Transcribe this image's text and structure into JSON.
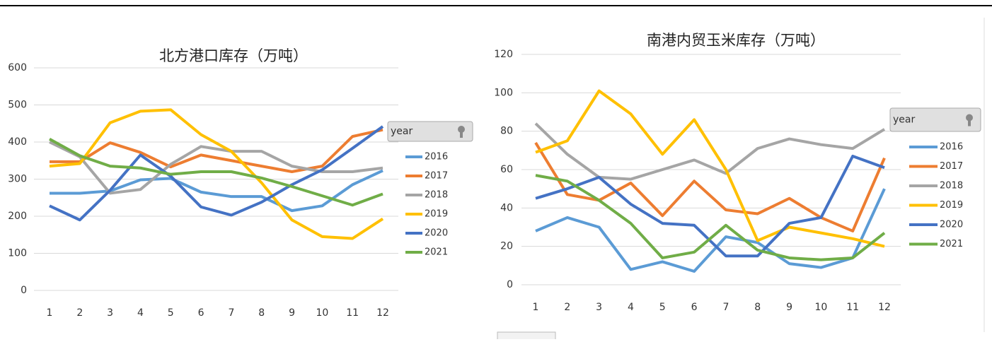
{
  "chart_data": [
    {
      "type": "line",
      "title": "北方港口库存（万吨）",
      "legend_title": "year",
      "categories": [
        "1",
        "2",
        "3",
        "4",
        "5",
        "6",
        "7",
        "8",
        "9",
        "10",
        "11",
        "12"
      ],
      "ylim": [
        0,
        600
      ],
      "yticks": [
        0,
        100,
        200,
        300,
        400,
        500,
        600
      ],
      "grid": true,
      "legend": "right",
      "series": [
        {
          "name": "2016",
          "color": "#5b9bd5",
          "values": [
            262,
            262,
            268,
            298,
            302,
            265,
            253,
            253,
            215,
            228,
            285,
            323
          ]
        },
        {
          "name": "2017",
          "color": "#ed7d31",
          "values": [
            347,
            347,
            398,
            372,
            333,
            365,
            350,
            335,
            320,
            335,
            415,
            433
          ]
        },
        {
          "name": "2018",
          "color": "#a5a5a5",
          "values": [
            400,
            360,
            262,
            272,
            340,
            388,
            375,
            375,
            335,
            320,
            320,
            330
          ]
        },
        {
          "name": "2019",
          "color": "#ffc000",
          "values": [
            335,
            342,
            452,
            483,
            487,
            420,
            375,
            290,
            190,
            145,
            140,
            193
          ]
        },
        {
          "name": "2020",
          "color": "#4472c4",
          "values": [
            228,
            190,
            270,
            365,
            308,
            225,
            203,
            238,
            285,
            325,
            383,
            442
          ]
        },
        {
          "name": "2021",
          "color": "#70ad47",
          "values": [
            408,
            363,
            335,
            330,
            313,
            320,
            320,
            303,
            280,
            255,
            230,
            260
          ]
        }
      ]
    },
    {
      "type": "line",
      "title": "南港内贸玉米库存（万吨）",
      "legend_title": "year",
      "categories": [
        "1",
        "2",
        "3",
        "4",
        "5",
        "6",
        "7",
        "8",
        "9",
        "10",
        "11",
        "12"
      ],
      "ylim": [
        0,
        120
      ],
      "yticks": [
        0,
        20,
        40,
        60,
        80,
        100,
        120
      ],
      "grid": true,
      "legend": "right",
      "series": [
        {
          "name": "2016",
          "color": "#5b9bd5",
          "values": [
            28,
            35,
            30,
            8,
            12,
            7,
            25,
            22,
            11,
            9,
            14,
            50
          ]
        },
        {
          "name": "2017",
          "color": "#ed7d31",
          "values": [
            74,
            47,
            44,
            53,
            36,
            54,
            39,
            37,
            45,
            35,
            28,
            66
          ]
        },
        {
          "name": "2018",
          "color": "#a5a5a5",
          "values": [
            84,
            68,
            56,
            55,
            60,
            65,
            58,
            71,
            76,
            73,
            71,
            81
          ]
        },
        {
          "name": "2019",
          "color": "#ffc000",
          "values": [
            69,
            75,
            101,
            89,
            68,
            86,
            60,
            23,
            30,
            27,
            24,
            20
          ]
        },
        {
          "name": "2020",
          "color": "#4472c4",
          "values": [
            45,
            50,
            56,
            42,
            32,
            31,
            15,
            15,
            32,
            35,
            67,
            61
          ]
        },
        {
          "name": "2021",
          "color": "#70ad47",
          "values": [
            57,
            54,
            44,
            32,
            14,
            17,
            31,
            18,
            14,
            13,
            14,
            27
          ]
        }
      ]
    }
  ]
}
